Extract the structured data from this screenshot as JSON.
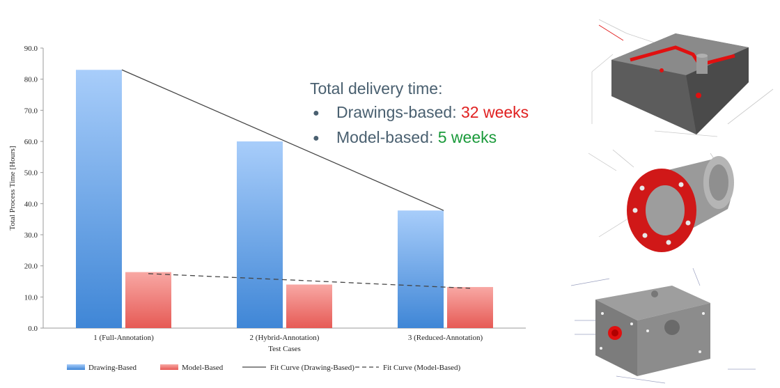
{
  "chart_data": {
    "type": "bar",
    "title": "",
    "xlabel": "Test Cases",
    "ylabel": "Total Process Time [Hours]",
    "ylim": [
      0,
      90
    ],
    "yticks": [
      "0.0",
      "10.0",
      "20.0",
      "30.0",
      "40.0",
      "50.0",
      "60.0",
      "70.0",
      "80.0",
      "90.0"
    ],
    "categories": [
      "1 (Full-Annotation)",
      "2 (Hybrid-Annotation)",
      "3 (Reduced-Annotation)"
    ],
    "series": [
      {
        "name": "Drawing-Based",
        "values": [
          83.0,
          60.0,
          37.8
        ],
        "color": "#5b9be0"
      },
      {
        "name": "Model-Based",
        "values": [
          18.0,
          14.0,
          13.2
        ],
        "color": "#f07070"
      }
    ],
    "fit_curves": [
      {
        "name": "Fit Curve (Drawing-Based)",
        "style": "solid",
        "values": [
          83.0,
          60.4,
          37.8
        ]
      },
      {
        "name": "Fit Curve (Model-Based)",
        "style": "dashed",
        "values": [
          17.5,
          15.2,
          12.8
        ]
      }
    ],
    "legend": [
      "Drawing-Based",
      "Model-Based",
      "Fit Curve (Drawing-Based)",
      "Fit Curve (Model-Based)"
    ],
    "legend_position": "bottom",
    "grid": false
  },
  "callout": {
    "heading": "Total delivery time:",
    "items": [
      {
        "label": "Drawings-based:",
        "value": "32 weeks",
        "color": "#e02020"
      },
      {
        "label": "Model-based:",
        "value": "5 weeks",
        "color": "#1a9a3a"
      }
    ]
  },
  "images": [
    {
      "icon": "machined-block-part-icon"
    },
    {
      "icon": "flanged-cylinder-part-icon"
    },
    {
      "icon": "cube-manifold-part-icon"
    }
  ]
}
